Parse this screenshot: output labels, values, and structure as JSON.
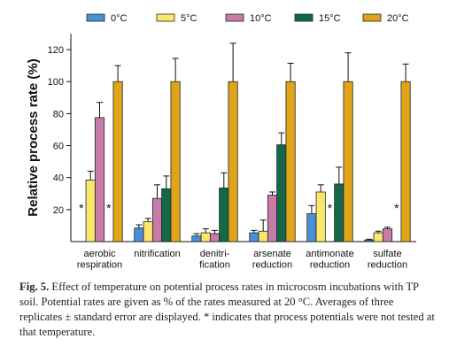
{
  "chart_data": {
    "type": "bar",
    "ylabel": "Relative process rate (%)",
    "ylim": [
      0,
      130
    ],
    "yticks": [
      20,
      40,
      60,
      80,
      100,
      120
    ],
    "legend_position": "top",
    "categories": [
      [
        "aerobic",
        "respiration"
      ],
      [
        "nitrification",
        ""
      ],
      [
        "denitri-",
        "fication"
      ],
      [
        "arsenate",
        "reduction"
      ],
      [
        "antimonate",
        "reduction"
      ],
      [
        "sulfate",
        "reduction"
      ]
    ],
    "series": [
      {
        "name": "0°C",
        "color": "#4a90d9",
        "values": [
          null,
          8.5,
          3.5,
          5.5,
          17.5,
          1
        ],
        "errors": [
          0,
          2,
          1.5,
          1.5,
          5,
          0.5
        ]
      },
      {
        "name": "5°C",
        "color": "#fbe86a",
        "values": [
          38.5,
          12.5,
          5.5,
          6.5,
          31,
          5.5
        ],
        "errors": [
          5.5,
          2,
          2.5,
          7,
          4.5,
          1
        ]
      },
      {
        "name": "10°C",
        "color": "#c77ba6",
        "values": [
          77.5,
          27,
          5,
          29,
          null,
          8
        ],
        "errors": [
          9.5,
          8.5,
          2,
          2,
          0,
          1
        ]
      },
      {
        "name": "15°C",
        "color": "#15674a",
        "values": [
          null,
          33,
          33.5,
          60.5,
          36,
          null
        ],
        "errors": [
          0,
          8,
          9.5,
          7.5,
          10.5,
          0
        ]
      },
      {
        "name": "20°C",
        "color": "#e0a418",
        "values": [
          100,
          100,
          100,
          100,
          100,
          100
        ],
        "errors": [
          10,
          14.5,
          24,
          11.5,
          18,
          11
        ]
      }
    ],
    "not_tested_marker": "*",
    "not_tested": [
      [
        0,
        0
      ],
      [
        0,
        3
      ],
      [
        4,
        2
      ],
      [
        5,
        3
      ]
    ]
  },
  "caption": {
    "label": "Fig. 5.",
    "text": " Effect of temperature on potential process rates in microcosm incubations with TP soil. Potential rates are given as % of the rates measured at 20 °C. Averages of three replicates ± standard error are displayed. * indicates that process potentials were not tested at that temperature."
  }
}
